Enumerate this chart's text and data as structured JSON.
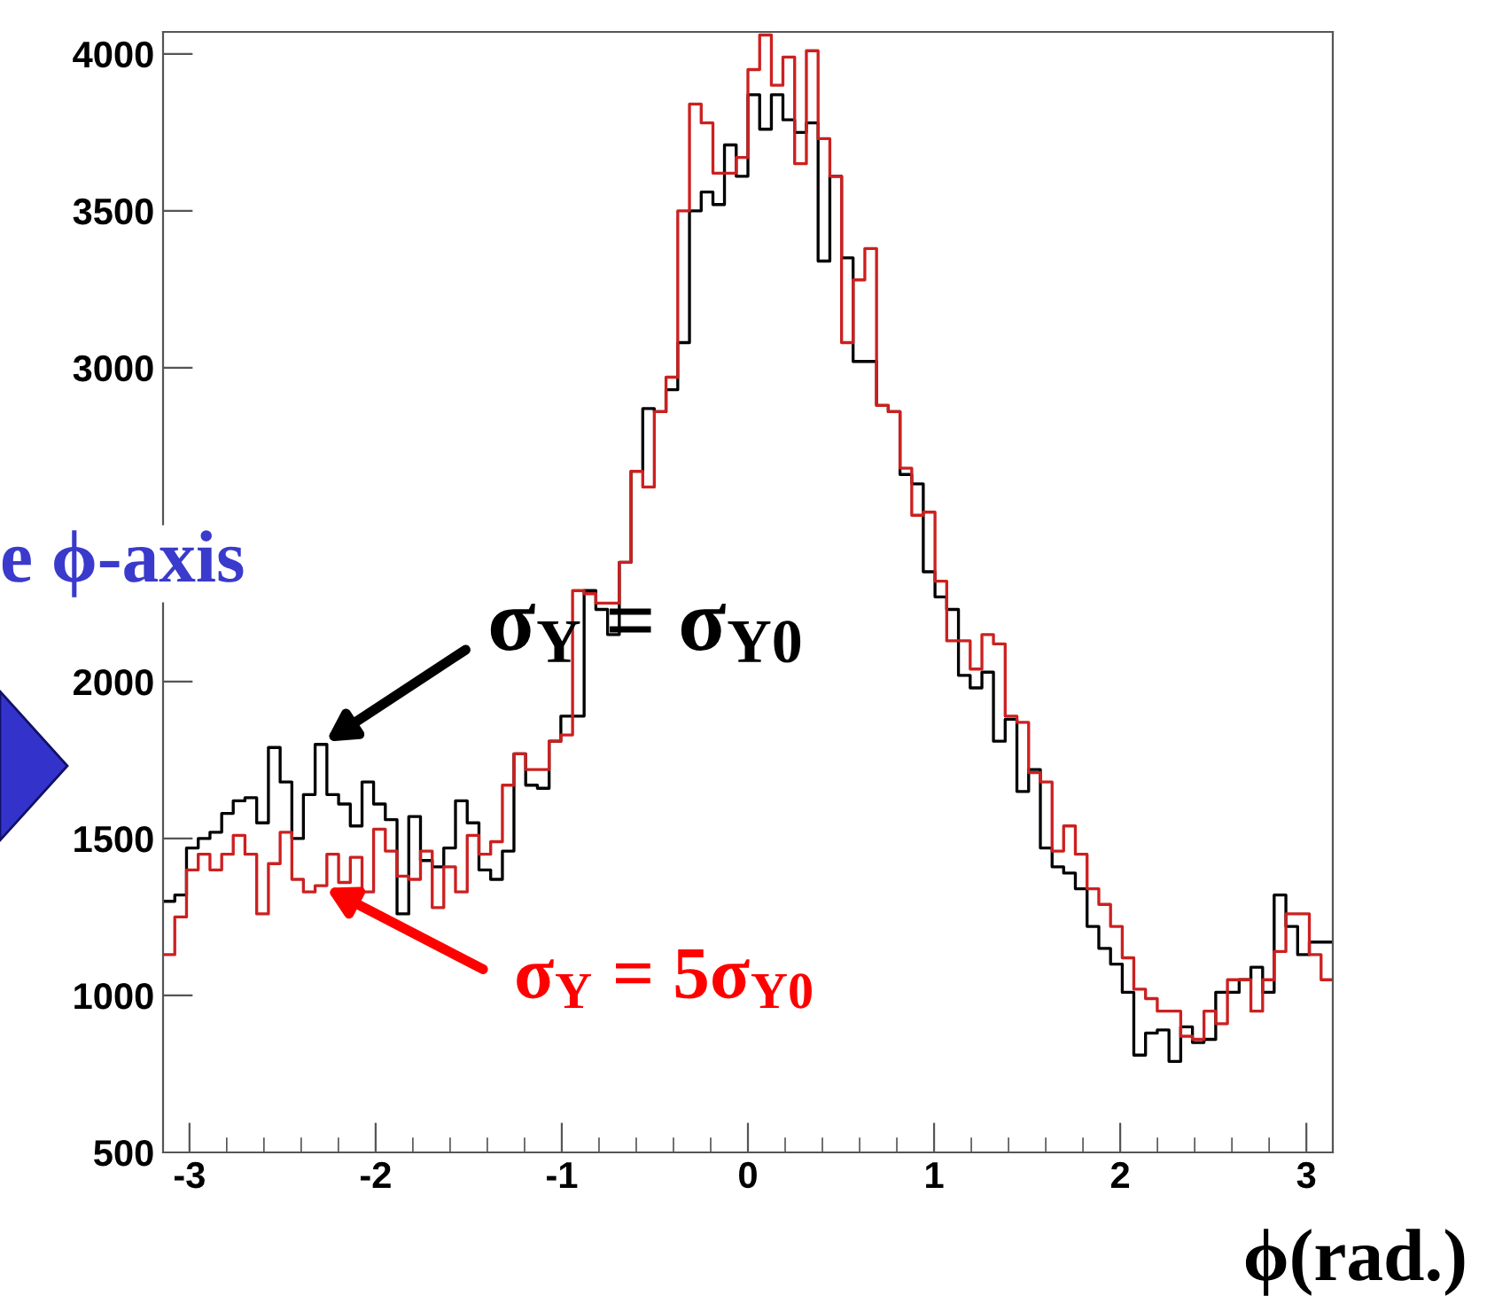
{
  "chart_data": {
    "type": "histogram",
    "xlabel": "ϕ(rad.)",
    "bins": [
      -3.142,
      -3.079,
      -3.016,
      -2.953,
      -2.89,
      -2.827,
      -2.765,
      -2.702,
      -2.639,
      -2.576,
      -2.513,
      -2.45,
      -2.388,
      -2.325,
      -2.262,
      -2.199,
      -2.136,
      -2.073,
      -2.011,
      -1.948,
      -1.885,
      -1.822,
      -1.759,
      -1.696,
      -1.634,
      -1.571,
      -1.508,
      -1.445,
      -1.382,
      -1.319,
      -1.257,
      -1.194,
      -1.131,
      -1.068,
      -1.005,
      -0.942,
      -0.88,
      -0.817,
      -0.754,
      -0.691,
      -0.628,
      -0.565,
      -0.503,
      -0.44,
      -0.377,
      -0.314,
      -0.251,
      -0.188,
      -0.126,
      -0.063,
      0,
      0.063,
      0.126,
      0.188,
      0.251,
      0.314,
      0.377,
      0.44,
      0.503,
      0.565,
      0.628,
      0.691,
      0.754,
      0.817,
      0.88,
      0.942,
      1.005,
      1.068,
      1.131,
      1.194,
      1.257,
      1.319,
      1.382,
      1.445,
      1.508,
      1.571,
      1.634,
      1.696,
      1.759,
      1.822,
      1.885,
      1.948,
      2.011,
      2.073,
      2.136,
      2.199,
      2.262,
      2.325,
      2.388,
      2.45,
      2.513,
      2.576,
      2.639,
      2.702,
      2.765,
      2.827,
      2.89,
      2.953,
      3.016,
      3.079,
      3.142
    ],
    "series": [
      {
        "color": "#000000",
        "values": [
          1300,
          1320,
          1470,
          1500,
          1520,
          1580,
          1620,
          1630,
          1550,
          1790,
          1680,
          1500,
          1640,
          1800,
          1640,
          1610,
          1540,
          1680,
          1610,
          1560,
          1260,
          1570,
          1430,
          1410,
          1470,
          1620,
          1550,
          1400,
          1370,
          1460,
          1770,
          1670,
          1660,
          1810,
          1890,
          1890,
          2290,
          2230,
          2150,
          2380,
          2670,
          2870,
          2860,
          2930,
          3080,
          3500,
          3560,
          3520,
          3710,
          3610,
          3870,
          3760,
          3870,
          3790,
          3750,
          3780,
          3340,
          3610,
          3350,
          3020,
          3020,
          2880,
          2860,
          2660,
          2630,
          2350,
          2270,
          2230,
          2020,
          1980,
          2030,
          1810,
          1880,
          1650,
          1720,
          1470,
          1410,
          1390,
          1340,
          1220,
          1150,
          1100,
          1010,
          810,
          880,
          890,
          790,
          900,
          850,
          860,
          1010,
          1010,
          1050,
          1090,
          1010,
          1320,
          1220,
          1130,
          1170,
          1170
        ]
      },
      {
        "color": "#cc2020",
        "values": [
          1130,
          1250,
          1400,
          1450,
          1400,
          1450,
          1510,
          1450,
          1260,
          1420,
          1520,
          1370,
          1330,
          1350,
          1450,
          1360,
          1440,
          1330,
          1530,
          1460,
          1380,
          1370,
          1460,
          1280,
          1410,
          1330,
          1510,
          1450,
          1490,
          1670,
          1770,
          1720,
          1720,
          1810,
          1830,
          2290,
          2280,
          2250,
          2250,
          2380,
          2670,
          2620,
          2860,
          2970,
          3500,
          3840,
          3780,
          3620,
          3620,
          3670,
          3950,
          4060,
          3900,
          3990,
          3650,
          4010,
          3730,
          3610,
          3080,
          3280,
          3380,
          2880,
          2860,
          2680,
          2530,
          2540,
          2320,
          2130,
          2130,
          2040,
          2150,
          2120,
          1890,
          1870,
          1710,
          1680,
          1460,
          1540,
          1450,
          1340,
          1290,
          1220,
          1120,
          1020,
          990,
          950,
          950,
          870,
          860,
          950,
          910,
          1050,
          1050,
          950,
          1050,
          1140,
          1260,
          1260,
          1130,
          1050
        ]
      }
    ],
    "xlim": [
      -3.142,
      3.142
    ],
    "ylim": [
      500,
      4070
    ],
    "xticks": [
      -3,
      -2,
      -1,
      0,
      1,
      2,
      3
    ],
    "yticks": [
      500,
      1000,
      1500,
      2000,
      3000,
      3500,
      4000
    ],
    "annotations": [
      {
        "text": "σ$_{Y}$ = σ$_{Y0}$",
        "x": -2.29,
        "y": 1800
      },
      {
        "text": "σ$_{Y}$ = 5σ$_{Y0}$",
        "x": -2.29,
        "y": 1350
      },
      "e ϕ-axis"
    ]
  }
}
